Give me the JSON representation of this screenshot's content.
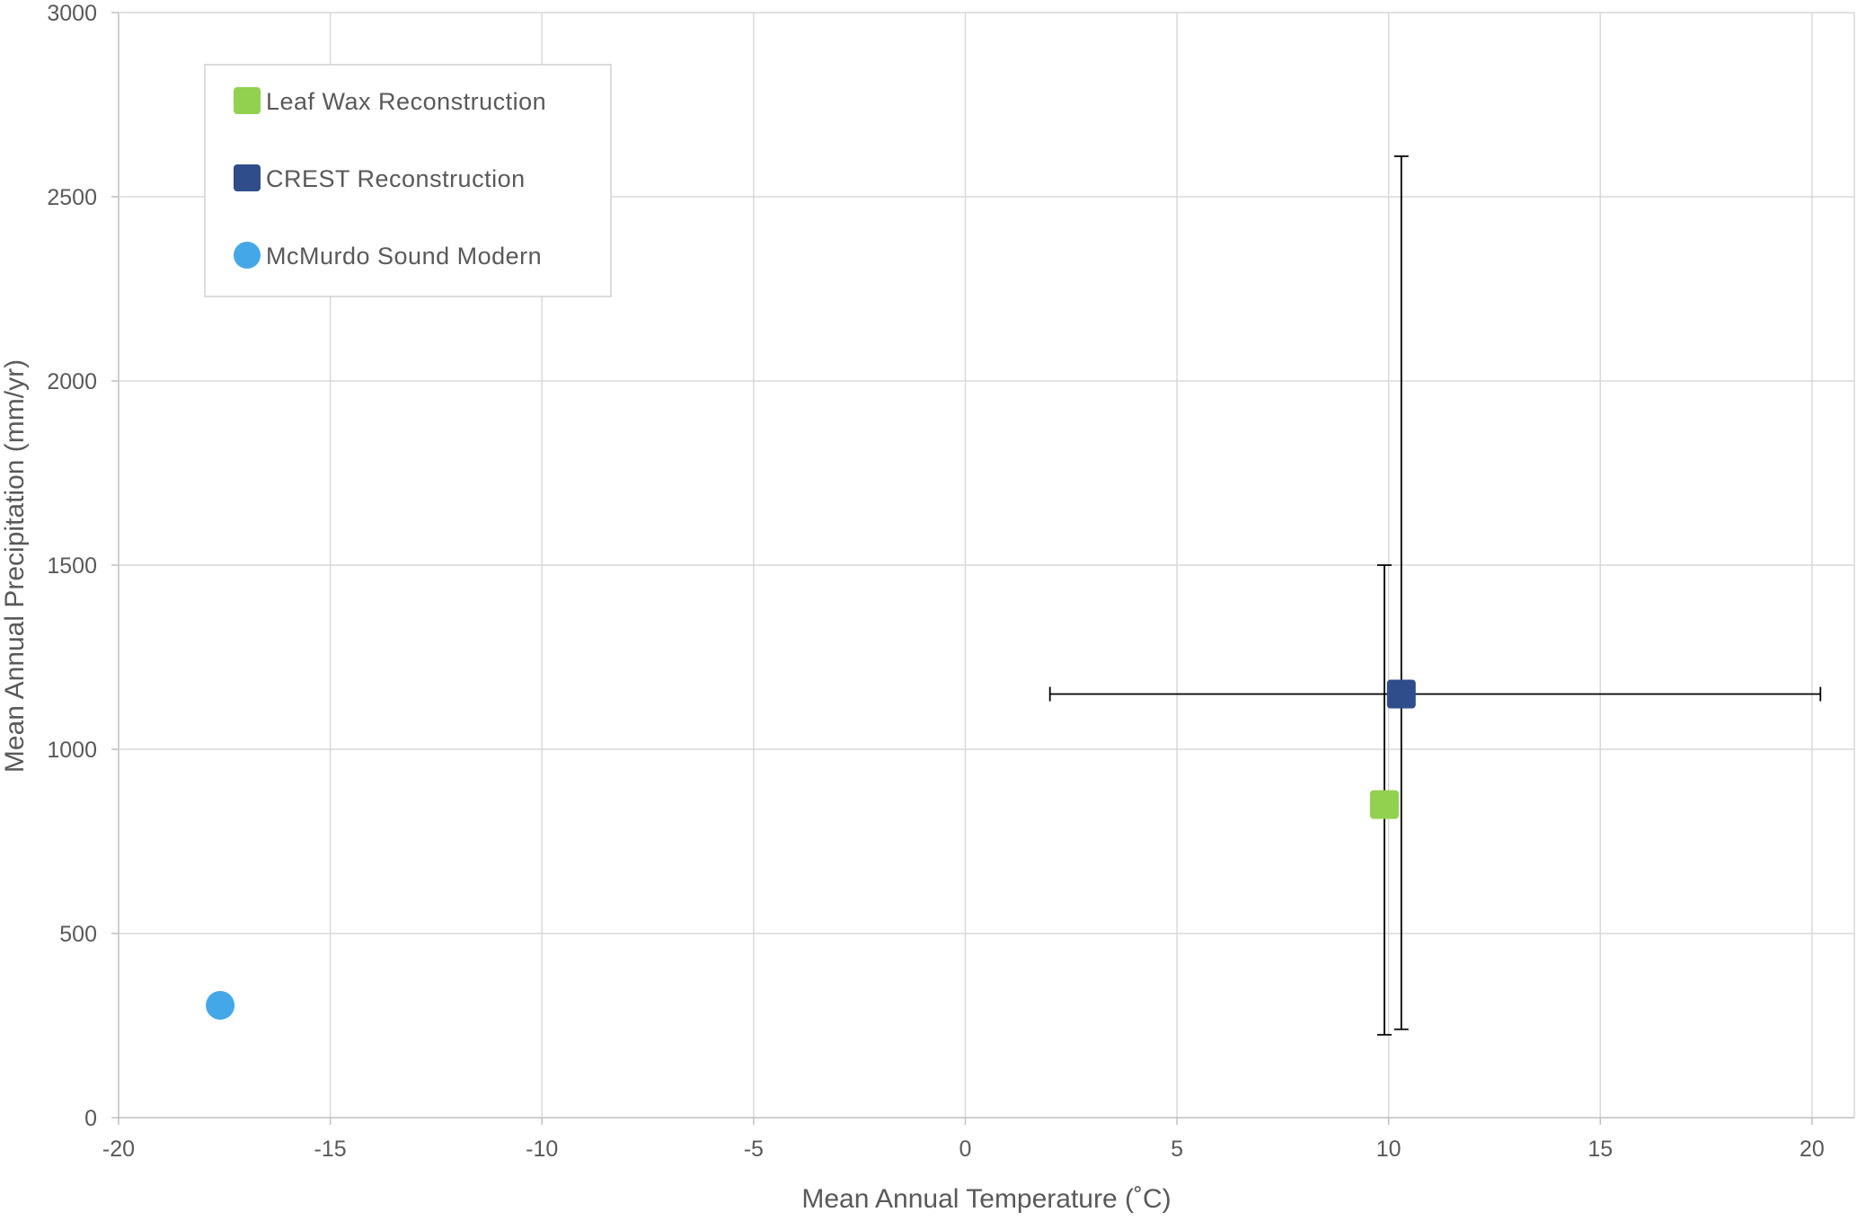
{
  "chart_data": {
    "type": "scatter",
    "title": "",
    "xlabel": "Mean Annual Temperature (˚C)",
    "ylabel": "Mean Annual Precipitation (mm/yr)",
    "xlim": [
      -20,
      21
    ],
    "ylim": [
      0,
      3000
    ],
    "x_ticks": [
      -20,
      -15,
      -10,
      -5,
      0,
      5,
      10,
      15,
      20
    ],
    "y_ticks": [
      0,
      500,
      1000,
      1500,
      2000,
      2500,
      3000
    ],
    "grid": true,
    "legend_position": "top-left",
    "series": [
      {
        "name": "Leaf Wax Reconstruction",
        "marker": "square",
        "color": "#92d050",
        "points": [
          {
            "x": 9.9,
            "y": 850,
            "y_err_low": 225,
            "y_err_high": 1500
          }
        ]
      },
      {
        "name": "CREST Reconstruction",
        "marker": "square",
        "color": "#2f4d8a",
        "points": [
          {
            "x": 10.3,
            "y": 1150,
            "x_err_low": 2.0,
            "x_err_high": 20.2,
            "y_err_low": 240,
            "y_err_high": 2610
          }
        ]
      },
      {
        "name": "McMurdo Sound Modern",
        "marker": "circle",
        "color": "#44a8e8",
        "points": [
          {
            "x": -17.6,
            "y": 305
          }
        ]
      }
    ]
  }
}
